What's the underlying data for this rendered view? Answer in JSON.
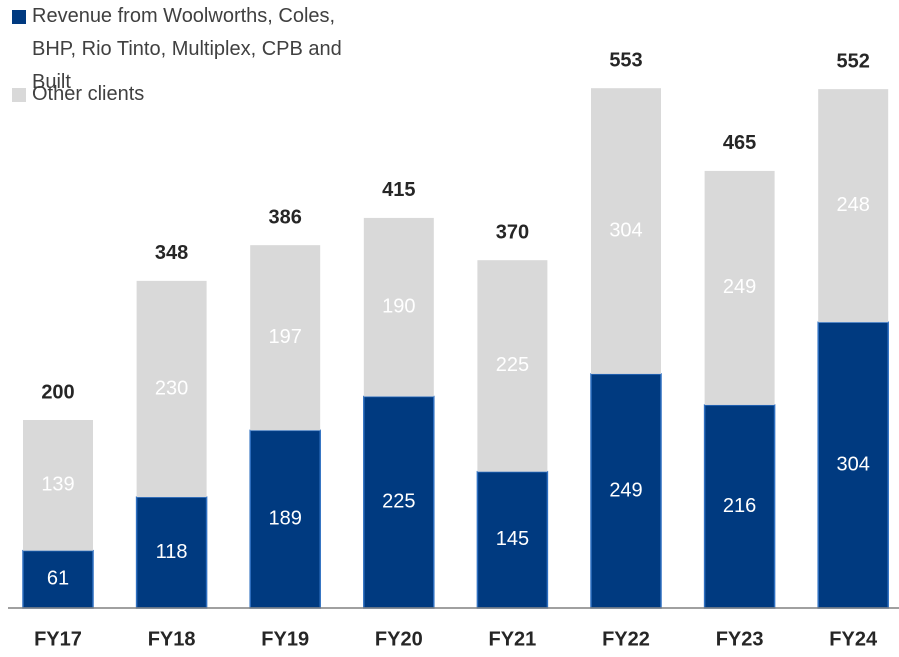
{
  "chart_data": {
    "type": "stacked_bar",
    "categories": [
      "FY17",
      "FY18",
      "FY19",
      "FY20",
      "FY21",
      "FY22",
      "FY23",
      "FY24"
    ],
    "series": [
      {
        "name": "Revenue from Woolworths, Coles, BHP, Rio Tinto, Multiplex, CPB and Built",
        "color": "#003a80",
        "values": [
          61,
          118,
          189,
          225,
          145,
          249,
          216,
          304
        ]
      },
      {
        "name": "Other clients",
        "color": "#d9d9d9",
        "values": [
          139,
          230,
          197,
          190,
          225,
          304,
          249,
          248
        ]
      }
    ],
    "totals": [
      200,
      348,
      386,
      415,
      370,
      553,
      465,
      552
    ]
  }
}
